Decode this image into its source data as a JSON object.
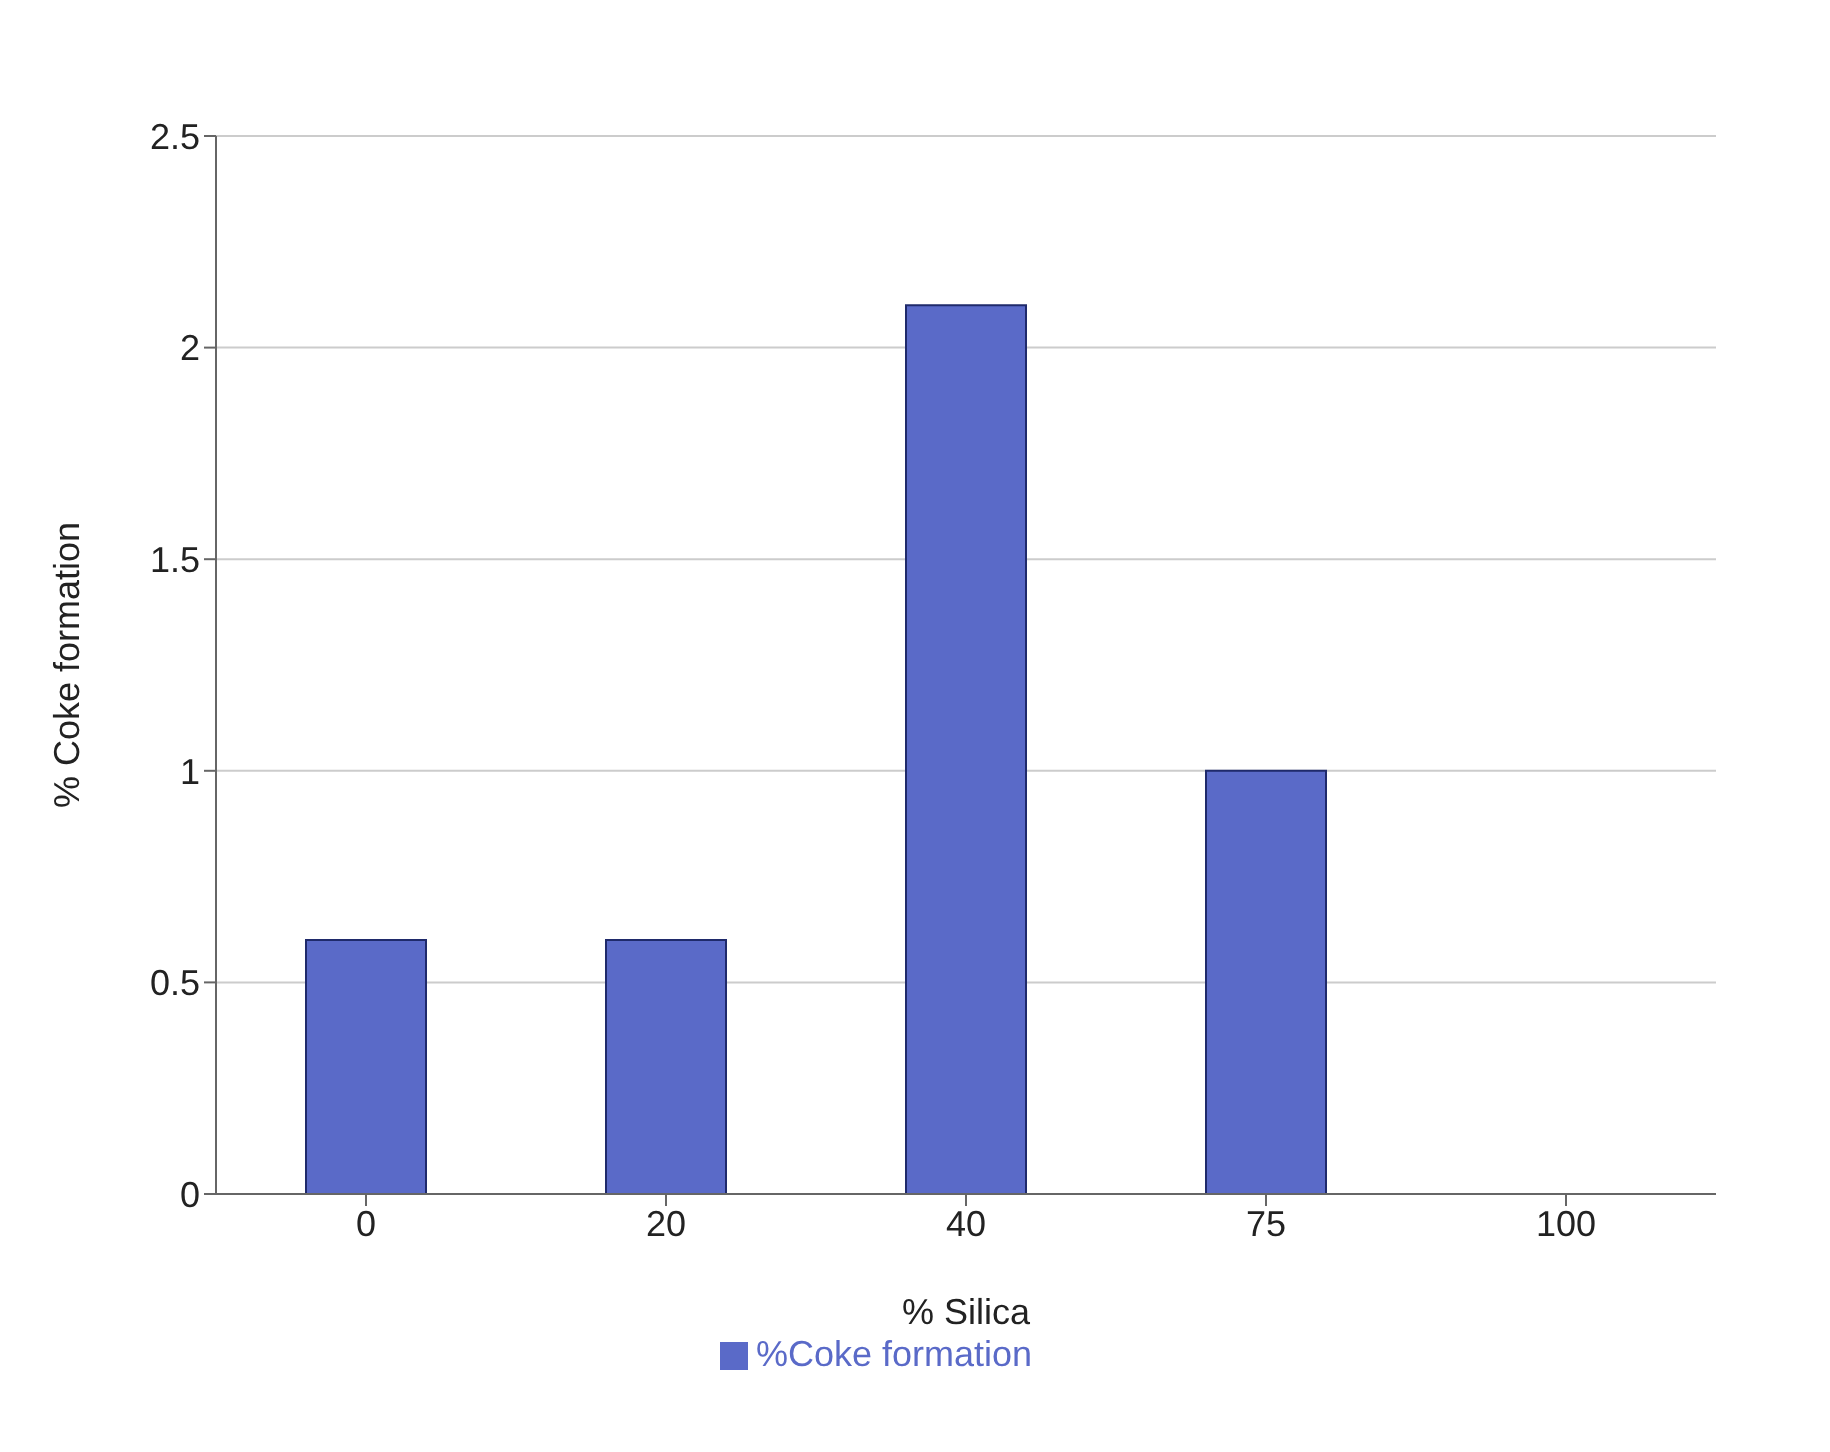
{
  "chart_data": {
    "type": "bar",
    "xlabel": "% Silica",
    "ylabel": "% Coke formation",
    "categories": [
      "0",
      "20",
      "40",
      "75",
      "100"
    ],
    "series": [
      {
        "name": "%Coke formation",
        "color": "#5a6ac8",
        "values": [
          0.6,
          0.6,
          2.1,
          1.0,
          0
        ]
      }
    ],
    "ylim": [
      0,
      2.5
    ],
    "yticks": [
      0,
      0.5,
      1,
      1.5,
      2,
      2.5
    ],
    "grid": "y",
    "legend": "bottom"
  }
}
